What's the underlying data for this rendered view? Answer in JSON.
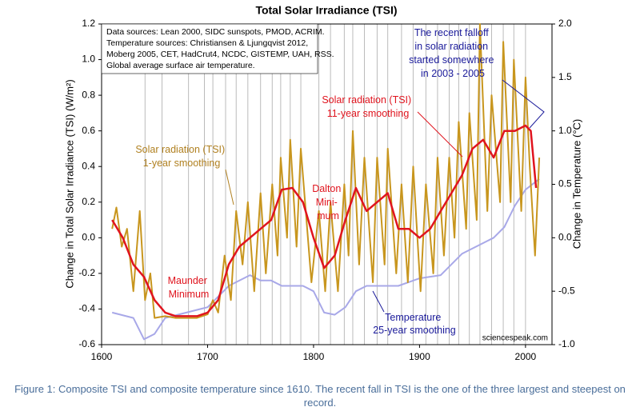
{
  "chart_data": {
    "type": "line",
    "title": "Total Solar Irradiance (TSI)",
    "ylabel": "Change in Total Solar Irradiance (TSI) (W/m²)",
    "y2label": "Change in Temperature (°C)",
    "xlim": [
      1600,
      2025
    ],
    "xticks": [
      1600,
      1700,
      1800,
      1900,
      2000
    ],
    "ylim": [
      -0.6,
      1.2
    ],
    "yticks": [
      -0.6,
      -0.4,
      -0.2,
      {
        "value": 0,
        "label": "0.0"
      },
      0.2,
      0.4,
      0.6,
      0.8,
      {
        "value": 1,
        "label": "1.0"
      },
      1.2
    ],
    "y2lim": [
      -1,
      2
    ],
    "y2ticks": [
      {
        "value": -1,
        "label": "-1.0"
      },
      -0.5,
      {
        "value": 0,
        "label": "0.0"
      },
      0.5,
      {
        "value": 1,
        "label": "1.0"
      },
      1.5,
      {
        "value": 2,
        "label": "2.0"
      }
    ],
    "vlines": [
      1641,
      1657,
      1682,
      1697,
      1705,
      1717,
      1727,
      1738,
      1750,
      1761,
      1769,
      1778,
      1788,
      1805,
      1816,
      1829,
      1837,
      1848,
      1860,
      1870,
      1883,
      1894,
      1906,
      1917,
      1928,
      1937,
      1947,
      1957,
      1968,
      1979,
      1989,
      2000
    ],
    "series": [
      {
        "name": "Solar radiation (TSI) 1-year smoothing",
        "color": "#c8961e",
        "x": [
          1610,
          1614,
          1619,
          1624,
          1630,
          1636,
          1641,
          1646,
          1650,
          1660,
          1670,
          1680,
          1690,
          1700,
          1705,
          1710,
          1716,
          1722,
          1727,
          1733,
          1738,
          1744,
          1750,
          1755,
          1761,
          1766,
          1769,
          1775,
          1778,
          1784,
          1788,
          1798,
          1805,
          1811,
          1816,
          1823,
          1829,
          1833,
          1837,
          1843,
          1848,
          1856,
          1860,
          1867,
          1870,
          1878,
          1883,
          1889,
          1894,
          1901,
          1906,
          1913,
          1917,
          1923,
          1928,
          1933,
          1937,
          1944,
          1947,
          1954,
          1957,
          1964,
          1968,
          1976,
          1979,
          1986,
          1989,
          1996,
          2000,
          2004,
          2009,
          2013
        ],
        "values": [
          0.05,
          0.17,
          -0.05,
          0.05,
          -0.3,
          0.15,
          -0.35,
          -0.2,
          -0.45,
          -0.44,
          -0.45,
          -0.45,
          -0.45,
          -0.43,
          -0.35,
          -0.42,
          -0.1,
          -0.35,
          0.15,
          -0.15,
          0.2,
          -0.3,
          0.25,
          -0.2,
          0.3,
          -0.1,
          0.45,
          0.0,
          0.55,
          -0.05,
          0.5,
          -0.25,
          0.15,
          -0.3,
          0.2,
          -0.3,
          0.3,
          -0.1,
          0.6,
          -0.15,
          0.45,
          -0.25,
          0.45,
          -0.15,
          0.5,
          -0.2,
          0.3,
          -0.25,
          0.4,
          -0.3,
          0.3,
          -0.2,
          0.45,
          -0.1,
          0.45,
          0.0,
          0.65,
          0.05,
          0.7,
          0.1,
          1.2,
          0.15,
          0.8,
          0.2,
          1.1,
          0.2,
          1.0,
          0.15,
          0.9,
          0.4,
          -0.1,
          0.45
        ]
      },
      {
        "name": "Solar radiation (TSI) 11-year smoothing",
        "color": "#e0141e",
        "x": [
          1610,
          1620,
          1630,
          1640,
          1650,
          1660,
          1670,
          1680,
          1690,
          1700,
          1710,
          1720,
          1730,
          1740,
          1750,
          1760,
          1770,
          1780,
          1790,
          1800,
          1810,
          1820,
          1830,
          1840,
          1850,
          1860,
          1870,
          1880,
          1890,
          1900,
          1910,
          1920,
          1930,
          1940,
          1950,
          1960,
          1970,
          1980,
          1990,
          2000,
          2005,
          2010
        ],
        "values": [
          0.1,
          0.0,
          -0.15,
          -0.22,
          -0.35,
          -0.42,
          -0.44,
          -0.44,
          -0.44,
          -0.42,
          -0.35,
          -0.15,
          -0.05,
          0.0,
          0.05,
          0.1,
          0.27,
          0.28,
          0.2,
          0.0,
          -0.17,
          -0.1,
          0.1,
          0.28,
          0.15,
          0.2,
          0.25,
          0.05,
          0.05,
          0.0,
          0.05,
          0.15,
          0.25,
          0.35,
          0.5,
          0.55,
          0.45,
          0.6,
          0.6,
          0.63,
          0.6,
          0.28
        ]
      },
      {
        "name": "Temperature 25-year smoothing",
        "color": "#a8a8e8",
        "axis": "y2",
        "x": [
          1610,
          1630,
          1640,
          1650,
          1660,
          1680,
          1700,
          1720,
          1740,
          1750,
          1760,
          1770,
          1790,
          1800,
          1810,
          1820,
          1830,
          1840,
          1850,
          1860,
          1880,
          1900,
          1920,
          1940,
          1960,
          1970,
          1980,
          1990,
          2000,
          2013
        ],
        "values": [
          -0.7,
          -0.75,
          -0.95,
          -0.9,
          -0.75,
          -0.7,
          -0.65,
          -0.45,
          -0.35,
          -0.4,
          -0.4,
          -0.45,
          -0.45,
          -0.5,
          -0.7,
          -0.72,
          -0.65,
          -0.5,
          -0.45,
          -0.45,
          -0.45,
          -0.38,
          -0.35,
          -0.15,
          -0.05,
          0.0,
          0.1,
          0.3,
          0.45,
          0.55
        ]
      }
    ],
    "annotations": {
      "sources": [
        "Data sources: Lean 2000, SIDC sunspots, PMOD, ACRIM.",
        "Temperature sources: Christiansen & Ljungqvist 2012,",
        "Moberg 2005, CET, HadCrut4, NCDC, GISTEMP, UAH, RSS.",
        "Global average surface air temperature."
      ],
      "falloff": [
        "The recent falloff",
        "in solar radiation",
        "started  somewhere",
        "in 2003 - 2005"
      ],
      "tsi11": [
        "Solar radiation (TSI)",
        "11-year smoothing"
      ],
      "tsi1": [
        "Solar radiation (TSI)",
        "1-year smoothing"
      ],
      "dalton": [
        "Dalton",
        "Mini-",
        "mum"
      ],
      "maunder": [
        "Maunder",
        "Minimum"
      ],
      "temp": [
        "Temperature",
        "25-year smoothing"
      ],
      "credit": "sciencespeak.com"
    },
    "caption": "Figure 1: Composite TSI and composite temperature since 1610. The recent fall in TSI is the one of the three largest and steepest on record."
  }
}
